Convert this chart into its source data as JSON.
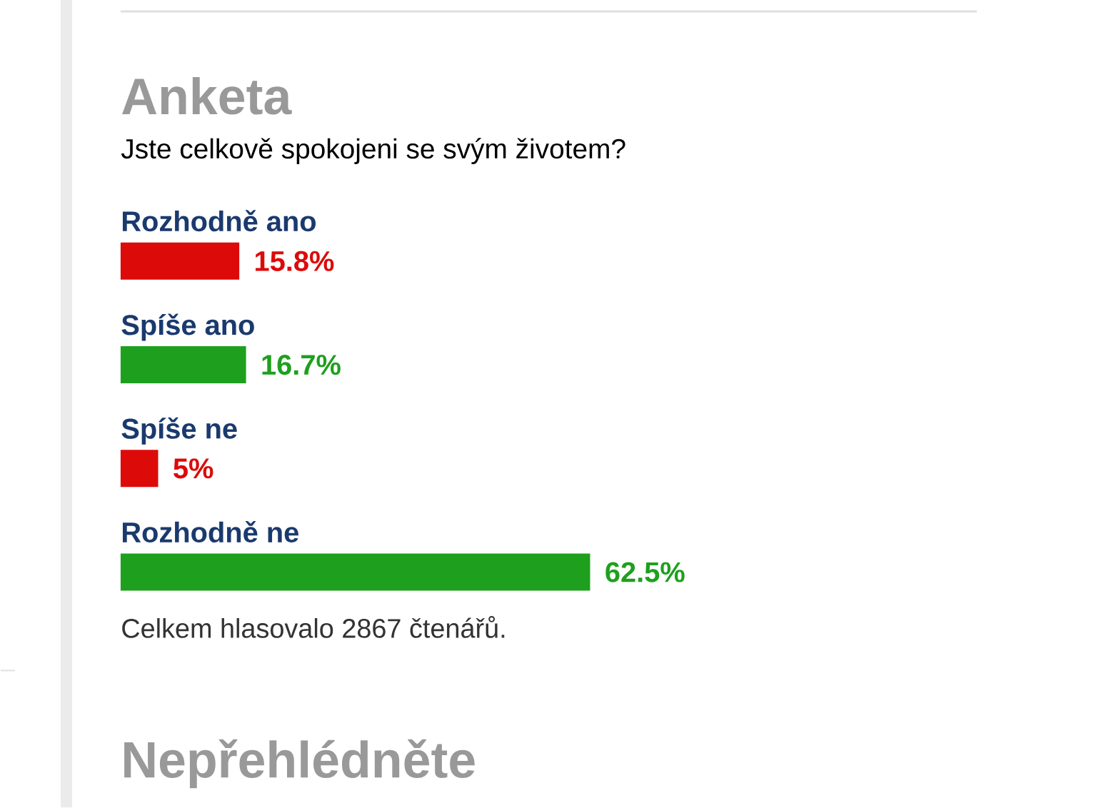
{
  "chart_data": {
    "type": "bar",
    "orientation": "horizontal",
    "title": "Anketa",
    "subtitle": "Jste celkově spokojeni se svým životem?",
    "categories": [
      "Rozhodně ano",
      "Spíše ano",
      "Spíše ne",
      "Rozhodně ne"
    ],
    "values": [
      15.8,
      16.7,
      5,
      62.5
    ],
    "value_labels": [
      "15.8%",
      "16.7%",
      "5%",
      "62.5%"
    ],
    "colors": [
      "#dd0a0a",
      "#1ea01e",
      "#dd0a0a",
      "#1ea01e"
    ],
    "annotations": [
      "Celkem hlasovalo 2867 čtenářů.",
      "Nepřehlédněte"
    ]
  }
}
